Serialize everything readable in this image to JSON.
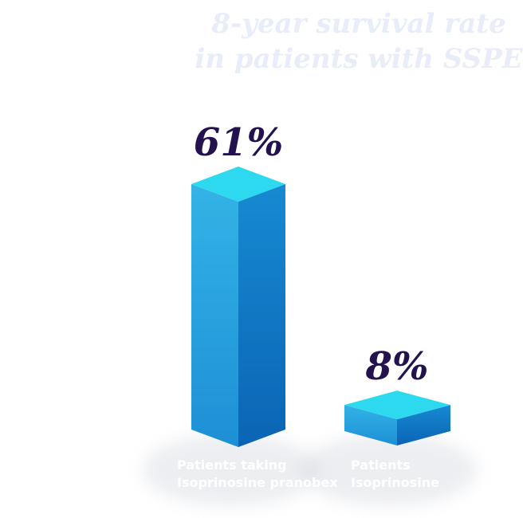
{
  "chart_data": {
    "type": "bar",
    "title_lines": [
      "8-year survival rate",
      "in patients with SSPE"
    ],
    "categories": [
      [
        "Patients taking",
        "Isoprinosine pranobex"
      ],
      [
        "Patients",
        "Isoprinosine"
      ]
    ],
    "values": [
      61,
      8
    ],
    "value_labels": [
      "61%",
      "8%"
    ],
    "ylim": [
      0,
      100
    ],
    "colors": {
      "bar_front_top": "#33b3e6",
      "bar_front_bottom": "#1e8fd6",
      "bar_side_top": "#168ad2",
      "bar_side_bottom": "#0b64b5",
      "bar_top_face": "#2cd9ef",
      "value_label": "#24124f",
      "title": "#e9ecf9"
    }
  }
}
